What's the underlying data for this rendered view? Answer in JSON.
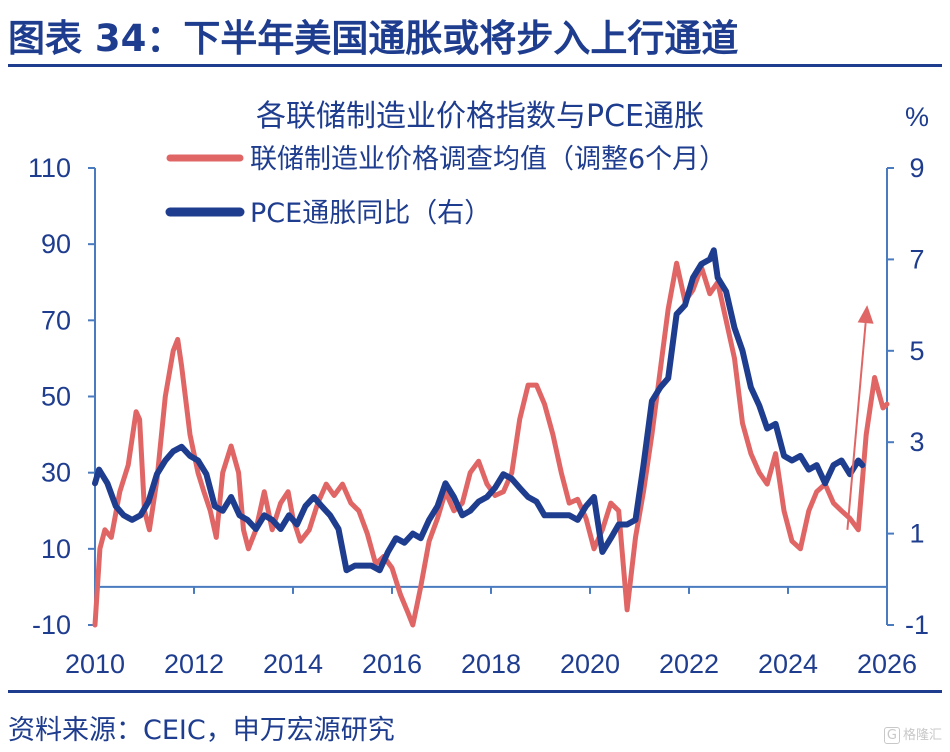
{
  "figure_title": "图表 34：下半年美国通胀或将步入上行通道",
  "source_note": "资料来源：CEIC，申万宏源研究",
  "watermark": "格隆汇",
  "chart_data": {
    "type": "line",
    "title": "各联储制造业价格指数与PCE通胀",
    "right_unit": "%",
    "x_ticks": [
      "2010",
      "2012",
      "2014",
      "2016",
      "2018",
      "2020",
      "2022",
      "2024",
      "2026"
    ],
    "x_range": [
      2010,
      2026
    ],
    "y_left": {
      "ticks": [
        "110",
        "90",
        "70",
        "50",
        "30",
        "10",
        "-10"
      ],
      "range": [
        -10,
        110
      ]
    },
    "y_right": {
      "ticks": [
        "9",
        "7",
        "5",
        "3",
        "1",
        "-1"
      ],
      "range": [
        -1,
        9
      ]
    },
    "grid": false,
    "legend_position": "top-left",
    "colors": {
      "red_series": "#e06666",
      "blue_series": "#1f3d8f",
      "axis": "#4a7bbf",
      "text": "#1f3d8f"
    },
    "annotation": {
      "type": "arrow",
      "color": "#e06666",
      "from": [
        2025.2,
        15
      ],
      "to": [
        2025.6,
        74
      ]
    },
    "series": [
      {
        "name": "联储制造业价格调查均值（调整6个月）",
        "axis": "left",
        "color": "#e06666",
        "points": [
          [
            2010.0,
            -10
          ],
          [
            2010.1,
            10
          ],
          [
            2010.2,
            15
          ],
          [
            2010.33,
            13
          ],
          [
            2010.5,
            25
          ],
          [
            2010.67,
            32
          ],
          [
            2010.83,
            46
          ],
          [
            2010.9,
            44
          ],
          [
            2011.0,
            20
          ],
          [
            2011.1,
            15
          ],
          [
            2011.25,
            28
          ],
          [
            2011.42,
            50
          ],
          [
            2011.58,
            62
          ],
          [
            2011.67,
            65
          ],
          [
            2011.75,
            58
          ],
          [
            2011.92,
            40
          ],
          [
            2012.08,
            30
          ],
          [
            2012.2,
            25
          ],
          [
            2012.33,
            20
          ],
          [
            2012.45,
            13
          ],
          [
            2012.58,
            30
          ],
          [
            2012.75,
            37
          ],
          [
            2012.9,
            30
          ],
          [
            2013.0,
            15
          ],
          [
            2013.1,
            10
          ],
          [
            2013.25,
            15
          ],
          [
            2013.42,
            25
          ],
          [
            2013.58,
            15
          ],
          [
            2013.75,
            22
          ],
          [
            2013.9,
            25
          ],
          [
            2014.0,
            18
          ],
          [
            2014.15,
            12
          ],
          [
            2014.33,
            15
          ],
          [
            2014.5,
            22
          ],
          [
            2014.67,
            27
          ],
          [
            2014.83,
            24
          ],
          [
            2015.0,
            27
          ],
          [
            2015.17,
            22
          ],
          [
            2015.33,
            20
          ],
          [
            2015.5,
            14
          ],
          [
            2015.67,
            6
          ],
          [
            2015.83,
            8
          ],
          [
            2016.0,
            5
          ],
          [
            2016.17,
            -2
          ],
          [
            2016.33,
            -7
          ],
          [
            2016.42,
            -10
          ],
          [
            2016.5,
            -5
          ],
          [
            2016.58,
            0
          ],
          [
            2016.75,
            12
          ],
          [
            2016.92,
            18
          ],
          [
            2017.08,
            25
          ],
          [
            2017.25,
            20
          ],
          [
            2017.42,
            22
          ],
          [
            2017.58,
            30
          ],
          [
            2017.75,
            33
          ],
          [
            2017.92,
            27
          ],
          [
            2018.08,
            24
          ],
          [
            2018.25,
            25
          ],
          [
            2018.42,
            30
          ],
          [
            2018.58,
            44
          ],
          [
            2018.75,
            53
          ],
          [
            2018.92,
            53
          ],
          [
            2019.08,
            48
          ],
          [
            2019.25,
            40
          ],
          [
            2019.42,
            30
          ],
          [
            2019.58,
            22
          ],
          [
            2019.75,
            23
          ],
          [
            2019.92,
            18
          ],
          [
            2020.08,
            10
          ],
          [
            2020.25,
            15
          ],
          [
            2020.42,
            22
          ],
          [
            2020.58,
            20
          ],
          [
            2020.75,
            -6
          ],
          [
            2020.92,
            13
          ],
          [
            2021.08,
            25
          ],
          [
            2021.25,
            40
          ],
          [
            2021.42,
            57
          ],
          [
            2021.58,
            73
          ],
          [
            2021.75,
            85
          ],
          [
            2021.92,
            75
          ],
          [
            2022.08,
            78
          ],
          [
            2022.25,
            84
          ],
          [
            2022.42,
            77
          ],
          [
            2022.58,
            80
          ],
          [
            2022.75,
            70
          ],
          [
            2022.92,
            60
          ],
          [
            2023.08,
            43
          ],
          [
            2023.25,
            35
          ],
          [
            2023.42,
            30
          ],
          [
            2023.58,
            27
          ],
          [
            2023.75,
            35
          ],
          [
            2023.92,
            20
          ],
          [
            2024.08,
            12
          ],
          [
            2024.25,
            10
          ],
          [
            2024.42,
            20
          ],
          [
            2024.58,
            25
          ],
          [
            2024.75,
            27
          ],
          [
            2024.92,
            22
          ],
          [
            2025.08,
            20
          ],
          [
            2025.25,
            18
          ],
          [
            2025.42,
            15
          ],
          [
            2025.58,
            40
          ],
          [
            2025.75,
            55
          ],
          [
            2025.92,
            47
          ],
          [
            2026.0,
            48
          ]
        ]
      },
      {
        "name": "PCE通胀同比（右）",
        "axis": "right",
        "color": "#1f3d8f",
        "points": [
          [
            2010.0,
            2.1
          ],
          [
            2010.08,
            2.4
          ],
          [
            2010.25,
            2.1
          ],
          [
            2010.42,
            1.6
          ],
          [
            2010.58,
            1.4
          ],
          [
            2010.75,
            1.3
          ],
          [
            2010.92,
            1.4
          ],
          [
            2011.08,
            1.7
          ],
          [
            2011.25,
            2.3
          ],
          [
            2011.42,
            2.6
          ],
          [
            2011.58,
            2.8
          ],
          [
            2011.75,
            2.9
          ],
          [
            2011.92,
            2.7
          ],
          [
            2012.08,
            2.6
          ],
          [
            2012.25,
            2.3
          ],
          [
            2012.42,
            1.6
          ],
          [
            2012.58,
            1.5
          ],
          [
            2012.75,
            1.8
          ],
          [
            2012.92,
            1.4
          ],
          [
            2013.08,
            1.3
          ],
          [
            2013.25,
            1.1
          ],
          [
            2013.42,
            1.4
          ],
          [
            2013.58,
            1.3
          ],
          [
            2013.75,
            1.1
          ],
          [
            2013.92,
            1.4
          ],
          [
            2014.08,
            1.2
          ],
          [
            2014.25,
            1.6
          ],
          [
            2014.42,
            1.8
          ],
          [
            2014.58,
            1.6
          ],
          [
            2014.75,
            1.4
          ],
          [
            2014.92,
            1.1
          ],
          [
            2015.08,
            0.2
          ],
          [
            2015.25,
            0.3
          ],
          [
            2015.42,
            0.3
          ],
          [
            2015.58,
            0.3
          ],
          [
            2015.75,
            0.2
          ],
          [
            2015.92,
            0.6
          ],
          [
            2016.08,
            0.9
          ],
          [
            2016.25,
            0.8
          ],
          [
            2016.42,
            1.0
          ],
          [
            2016.58,
            0.9
          ],
          [
            2016.75,
            1.3
          ],
          [
            2016.92,
            1.6
          ],
          [
            2017.08,
            2.1
          ],
          [
            2017.25,
            1.8
          ],
          [
            2017.42,
            1.4
          ],
          [
            2017.58,
            1.5
          ],
          [
            2017.75,
            1.7
          ],
          [
            2017.92,
            1.8
          ],
          [
            2018.08,
            2.0
          ],
          [
            2018.25,
            2.3
          ],
          [
            2018.42,
            2.2
          ],
          [
            2018.58,
            2.0
          ],
          [
            2018.75,
            1.8
          ],
          [
            2018.92,
            1.7
          ],
          [
            2019.08,
            1.4
          ],
          [
            2019.25,
            1.4
          ],
          [
            2019.42,
            1.4
          ],
          [
            2019.58,
            1.4
          ],
          [
            2019.75,
            1.3
          ],
          [
            2019.92,
            1.6
          ],
          [
            2020.08,
            1.8
          ],
          [
            2020.25,
            0.6
          ],
          [
            2020.42,
            0.9
          ],
          [
            2020.58,
            1.2
          ],
          [
            2020.75,
            1.2
          ],
          [
            2020.92,
            1.3
          ],
          [
            2021.08,
            2.5
          ],
          [
            2021.25,
            3.9
          ],
          [
            2021.42,
            4.2
          ],
          [
            2021.58,
            4.4
          ],
          [
            2021.75,
            5.8
          ],
          [
            2021.92,
            6.0
          ],
          [
            2022.08,
            6.6
          ],
          [
            2022.25,
            6.9
          ],
          [
            2022.42,
            7.0
          ],
          [
            2022.5,
            7.2
          ],
          [
            2022.58,
            6.6
          ],
          [
            2022.75,
            6.3
          ],
          [
            2022.92,
            5.5
          ],
          [
            2023.08,
            5.0
          ],
          [
            2023.25,
            4.2
          ],
          [
            2023.42,
            3.8
          ],
          [
            2023.58,
            3.3
          ],
          [
            2023.75,
            3.4
          ],
          [
            2023.92,
            2.7
          ],
          [
            2024.08,
            2.6
          ],
          [
            2024.25,
            2.7
          ],
          [
            2024.42,
            2.4
          ],
          [
            2024.58,
            2.5
          ],
          [
            2024.75,
            2.1
          ],
          [
            2024.92,
            2.5
          ],
          [
            2025.08,
            2.6
          ],
          [
            2025.25,
            2.3
          ],
          [
            2025.42,
            2.6
          ],
          [
            2025.5,
            2.5
          ]
        ]
      }
    ]
  }
}
